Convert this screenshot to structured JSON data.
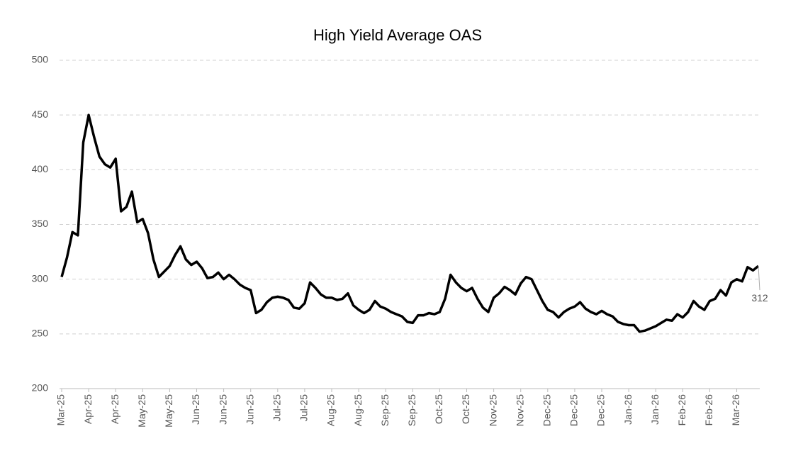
{
  "chart_data": {
    "type": "line",
    "title": "High Yield Average OAS",
    "categories": [
      "Mar-25",
      null,
      null,
      null,
      null,
      "Apr-25",
      null,
      null,
      null,
      null,
      "Apr-25",
      null,
      null,
      null,
      null,
      "May-25",
      null,
      null,
      null,
      null,
      "May-25",
      null,
      null,
      null,
      null,
      "Jun-25",
      null,
      null,
      null,
      null,
      "Jun-25",
      null,
      null,
      null,
      null,
      "Jun-25",
      null,
      null,
      null,
      null,
      "Jul-25",
      null,
      null,
      null,
      null,
      "Jul-25",
      null,
      null,
      null,
      null,
      "Aug-25",
      null,
      null,
      null,
      null,
      "Aug-25",
      null,
      null,
      null,
      null,
      "Sep-25",
      null,
      null,
      null,
      null,
      "Sep-25",
      null,
      null,
      null,
      null,
      "Oct-25",
      null,
      null,
      null,
      null,
      "Oct-25",
      null,
      null,
      null,
      null,
      "Nov-25",
      null,
      null,
      null,
      null,
      "Nov-25",
      null,
      null,
      null,
      null,
      "Dec-25",
      null,
      null,
      null,
      null,
      "Dec-25",
      null,
      null,
      null,
      null,
      "Dec-25",
      null,
      null,
      null,
      null,
      "Jan-26",
      null,
      null,
      null,
      null,
      "Jan-26",
      null,
      null,
      null,
      null,
      "Feb-26",
      null,
      null,
      null,
      null,
      "Feb-26",
      null,
      null,
      null,
      null,
      "Mar-26",
      null,
      null,
      null,
      null
    ],
    "series": [
      {
        "name": "High Yield Average OAS",
        "color": "#000000",
        "values": [
          302,
          320,
          343,
          340,
          425,
          450,
          430,
          412,
          405,
          402,
          410,
          362,
          366,
          380,
          352,
          355,
          342,
          318,
          302,
          307,
          312,
          322,
          330,
          318,
          313,
          316,
          310,
          301,
          302,
          306,
          300,
          304,
          300,
          295,
          292,
          290,
          269,
          272,
          279,
          283,
          284,
          283,
          281,
          274,
          273,
          278,
          297,
          292,
          286,
          283,
          283,
          281,
          282,
          287,
          276,
          272,
          269,
          272,
          280,
          275,
          273,
          270,
          268,
          266,
          261,
          260,
          267,
          267,
          269,
          268,
          270,
          282,
          304,
          297,
          292,
          289,
          292,
          282,
          274,
          270,
          283,
          287,
          293,
          290,
          286,
          296,
          302,
          300,
          290,
          280,
          272,
          270,
          265,
          270,
          273,
          275,
          279,
          273,
          270,
          268,
          271,
          268,
          266,
          261,
          259,
          258,
          258,
          252,
          253,
          255,
          257,
          260,
          263,
          262,
          268,
          265,
          270,
          280,
          275,
          272,
          280,
          282,
          290,
          285,
          297,
          300,
          298,
          311,
          308,
          312
        ]
      }
    ],
    "ylim": [
      200,
      500
    ],
    "yticks": [
      200,
      250,
      300,
      350,
      400,
      450,
      500
    ],
    "grid": true
  }
}
